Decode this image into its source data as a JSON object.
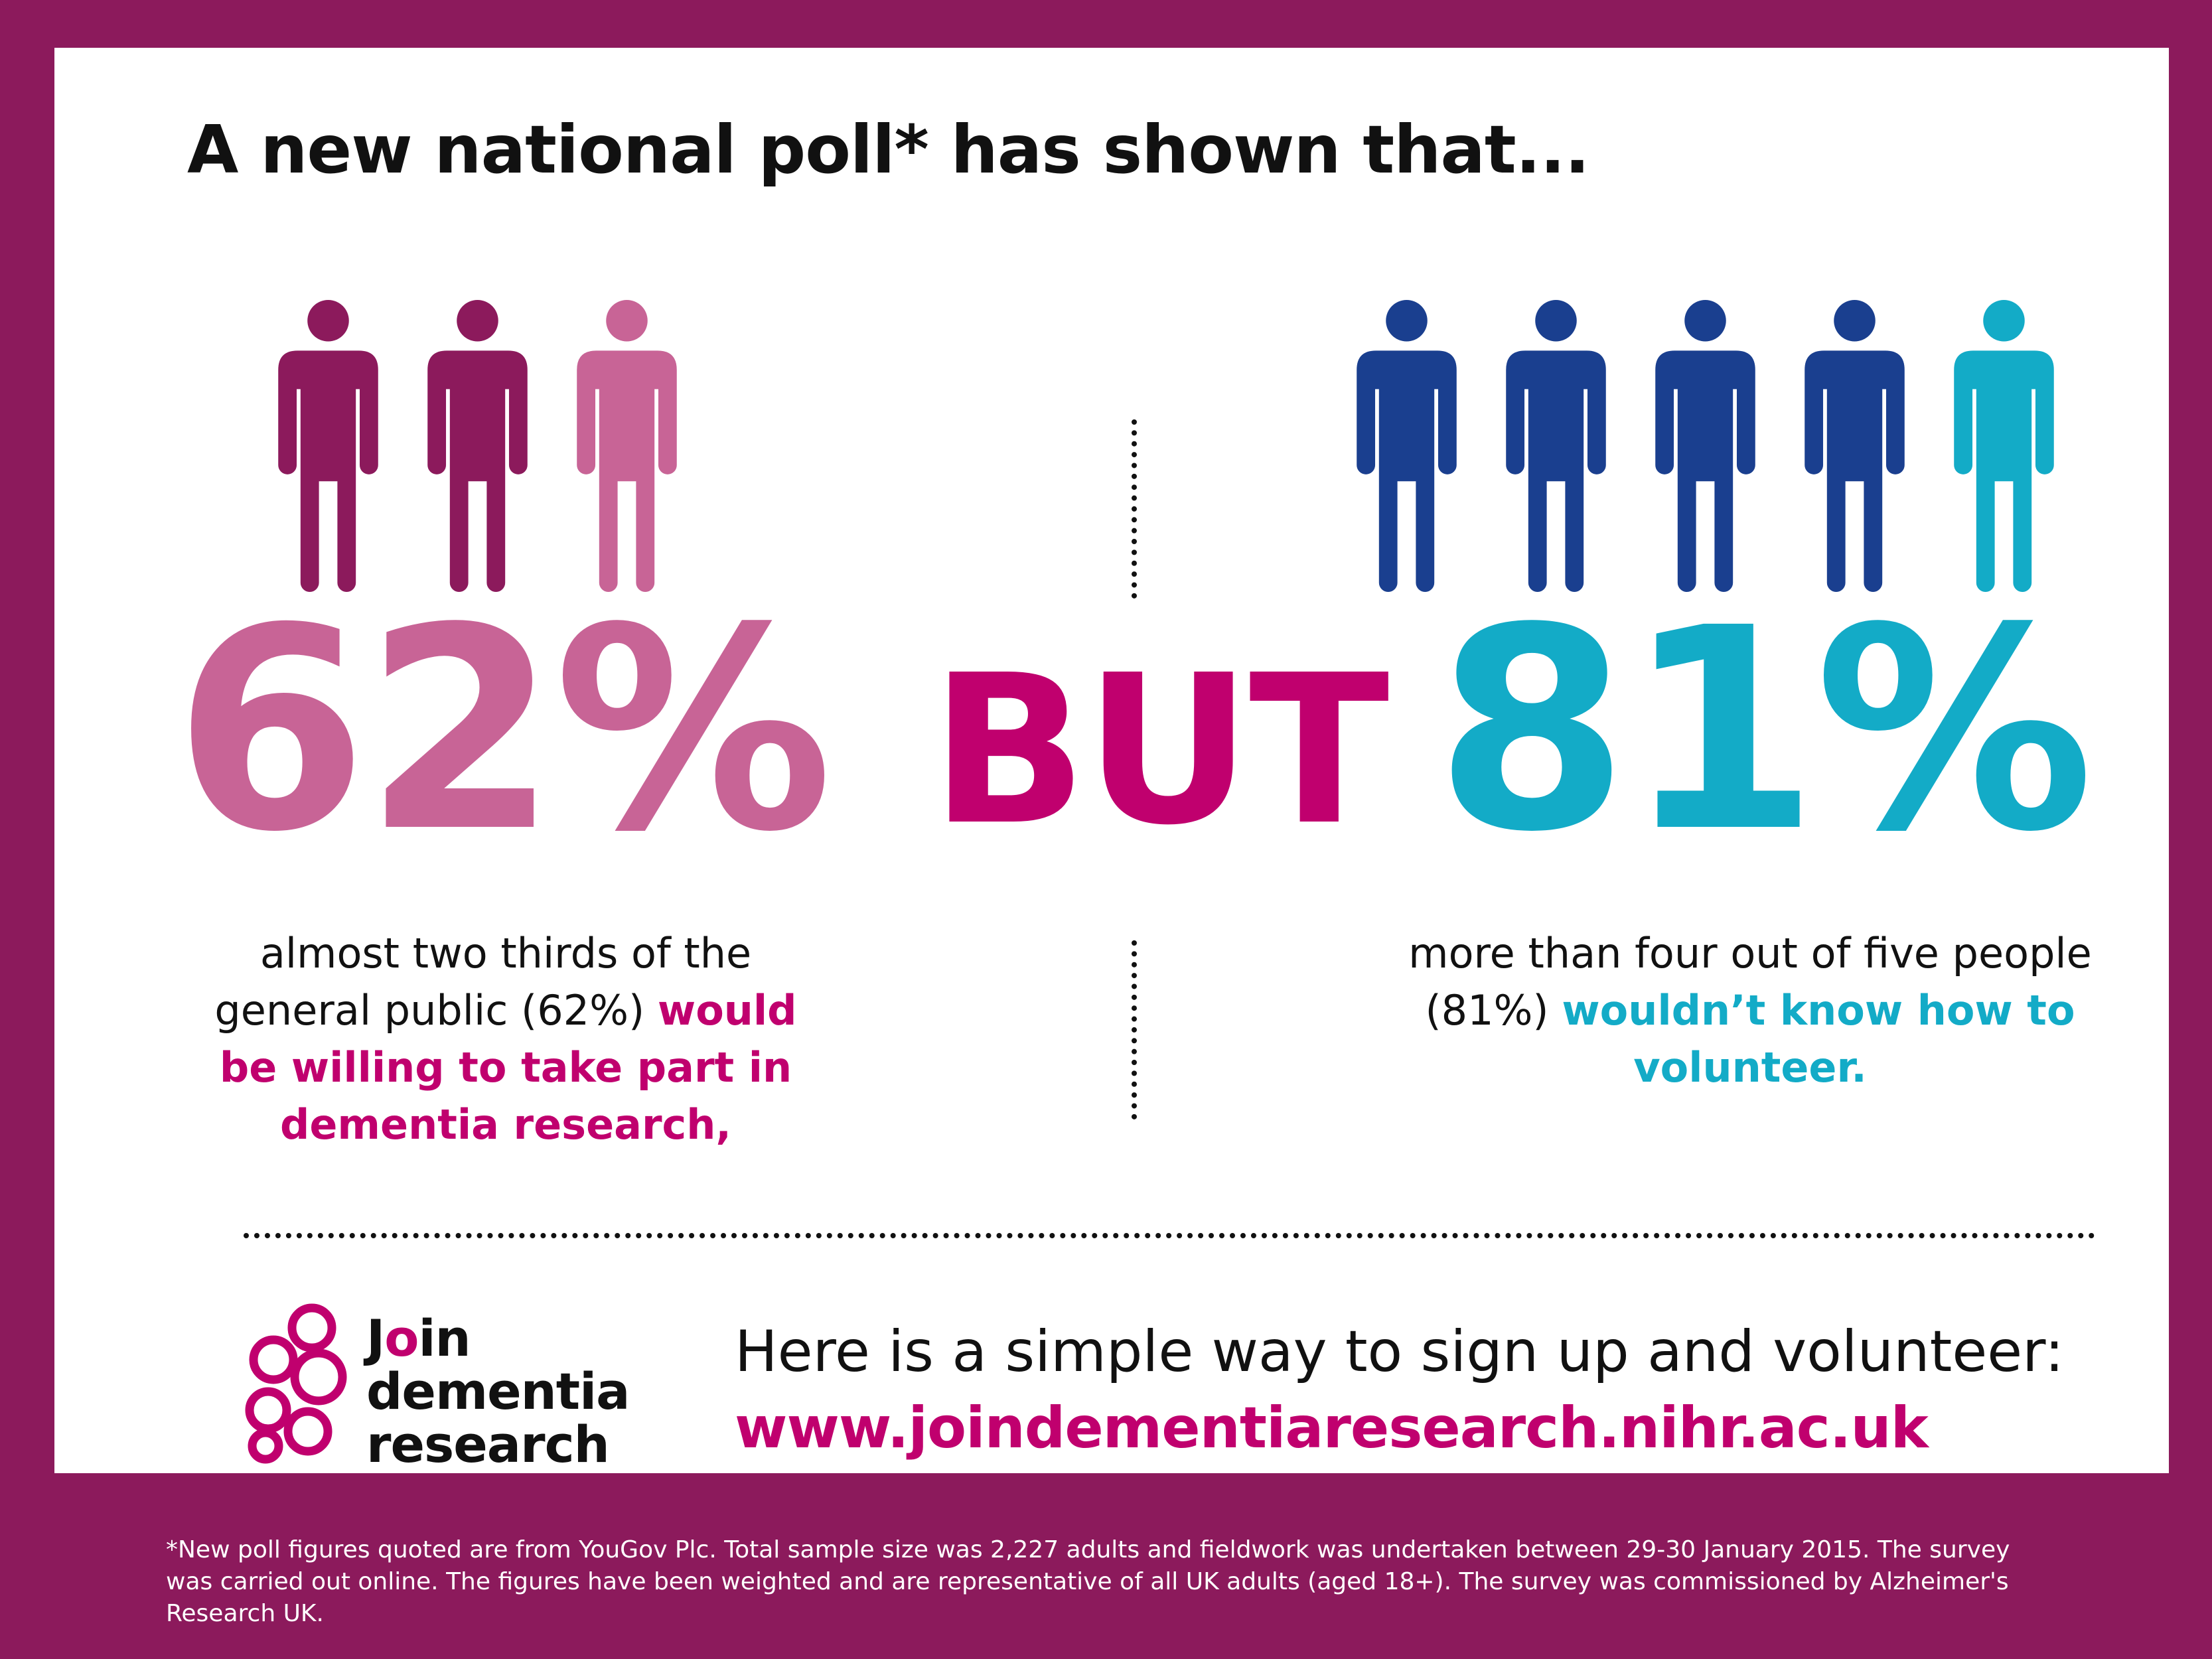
{
  "headline": "A new national poll* has shown that...",
  "colors": {
    "frame": "#8c1a5c",
    "pink_dark": "#8c1a5c",
    "pink_light": "#c86496",
    "magenta": "#c0006e",
    "blue_dark": "#1a3f8f",
    "cyan": "#13abc7"
  },
  "left_stat": {
    "figure_icons": [
      "person-icon",
      "person-icon",
      "person-icon"
    ],
    "figures_highlighted": 2,
    "figures_total": 3,
    "percent": "62%",
    "description_plain": "almost two thirds of the general public (62%) ",
    "description_highlight": "would be willing to take part in dementia research,"
  },
  "connector": "BUT",
  "right_stat": {
    "figure_icons": [
      "person-icon",
      "person-icon",
      "person-icon",
      "person-icon",
      "person-icon"
    ],
    "figures_highlighted": 4,
    "figures_total": 5,
    "percent": "81%",
    "description_plain": "more than four out of five people (81%) ",
    "description_highlight": "wouldn’t know how to volunteer."
  },
  "logo": {
    "line1_start": "J",
    "line1_accent": "o",
    "line1_end": "in",
    "line2": "dementia",
    "line3": "research",
    "icon": "circles-logo-icon"
  },
  "cta": {
    "text": "Here is a simple way to sign up and volunteer:",
    "url": "www.joindementiaresearch.nihr.ac.uk"
  },
  "footnote": "*New poll figures quoted are from YouGov Plc. Total sample size was 2,227 adults and fieldwork was undertaken between 29-30 January 2015. The survey was carried out online. The figures have been weighted and are representative of all UK adults (aged 18+). The survey was commissioned by Alzheimer's Research UK."
}
